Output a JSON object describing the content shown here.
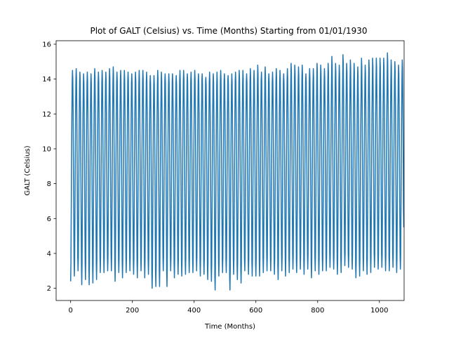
{
  "chart_data": {
    "type": "line",
    "title": "Plot of GALT (Celsius) vs. Time (Months) Starting from 01/01/1930",
    "xlabel": "Time (Months)",
    "ylabel": "GALT (Celsius)",
    "xlim": [
      -47,
      1080
    ],
    "ylim": [
      1.3,
      16.2
    ],
    "xticks": [
      0,
      200,
      400,
      600,
      800,
      1000
    ],
    "yticks": [
      2,
      4,
      6,
      8,
      10,
      12,
      14,
      16
    ],
    "grid": false,
    "legend": false,
    "series": [
      {
        "color": "#1f77b4",
        "x_start": 0,
        "x_step": 1,
        "values": [
          2.4,
          3.5,
          6.5,
          9.5,
          12.0,
          13.8,
          14.5,
          14.0,
          12.2,
          9.3,
          6.3,
          3.6,
          2.7,
          3.6,
          6.6,
          9.6,
          12.1,
          13.9,
          14.6,
          14.1,
          12.3,
          9.4,
          6.4,
          3.8,
          3.0,
          3.7,
          6.5,
          9.5,
          12.0,
          13.8,
          14.4,
          13.9,
          12.1,
          9.2,
          6.2,
          3.4,
          2.2,
          3.4,
          6.4,
          9.4,
          11.9,
          13.7,
          14.3,
          13.8,
          12.0,
          9.1,
          6.1,
          3.5,
          2.5,
          3.5,
          6.5,
          9.5,
          12.0,
          13.8,
          14.4,
          13.9,
          12.1,
          9.2,
          6.2,
          3.3,
          2.2,
          3.4,
          6.4,
          9.4,
          11.9,
          13.7,
          14.3,
          13.8,
          12.0,
          9.1,
          6.1,
          3.3,
          2.3,
          3.5,
          6.5,
          9.6,
          12.1,
          13.9,
          14.6,
          14.1,
          12.3,
          9.4,
          6.3,
          3.4,
          2.5,
          3.6,
          6.5,
          9.5,
          12.0,
          13.8,
          14.4,
          13.9,
          12.1,
          9.2,
          6.2,
          3.8,
          2.9,
          3.8,
          6.6,
          9.5,
          12.0,
          13.8,
          14.5,
          14.0,
          12.2,
          9.3,
          6.3,
          3.8,
          2.9,
          3.8,
          6.6,
          9.5,
          12.0,
          13.8,
          14.4,
          13.9,
          12.1,
          9.2,
          6.2,
          3.8,
          3.0,
          3.8,
          6.6,
          9.6,
          12.1,
          13.9,
          14.6,
          14.1,
          12.3,
          9.4,
          6.4,
          3.9,
          3.0,
          3.8,
          6.6,
          9.6,
          12.1,
          13.9,
          14.7,
          14.2,
          12.4,
          9.5,
          6.4,
          3.5,
          2.4,
          3.5,
          6.5,
          9.5,
          12.0,
          13.8,
          14.4,
          13.9,
          12.1,
          9.2,
          6.2,
          3.7,
          2.9,
          3.8,
          6.6,
          9.6,
          12.1,
          13.9,
          14.5,
          14.0,
          12.2,
          9.3,
          6.3,
          3.5,
          2.6,
          3.6,
          6.5,
          9.5,
          12.0,
          13.8,
          14.5,
          14.0,
          12.2,
          9.3,
          6.3,
          3.8,
          2.9,
          3.8,
          6.6,
          9.6,
          12.1,
          13.9,
          14.4,
          13.9,
          12.1,
          9.2,
          6.2,
          3.8,
          3.0,
          3.8,
          6.6,
          9.5,
          12.0,
          13.8,
          14.3,
          13.8,
          12.0,
          9.1,
          6.1,
          3.6,
          2.8,
          3.7,
          6.6,
          9.6,
          12.1,
          13.9,
          14.4,
          13.9,
          12.1,
          9.2,
          6.2,
          3.5,
          2.6,
          3.6,
          6.5,
          9.5,
          12.0,
          13.8,
          14.5,
          14.0,
          12.2,
          9.3,
          6.3,
          3.8,
          3.0,
          3.8,
          6.6,
          9.6,
          12.1,
          13.9,
          14.5,
          14.0,
          12.2,
          9.3,
          6.3,
          3.5,
          2.6,
          3.6,
          6.5,
          9.5,
          12.0,
          13.8,
          14.4,
          13.9,
          12.1,
          9.2,
          6.2,
          3.6,
          2.8,
          3.7,
          6.6,
          9.5,
          12.0,
          13.8,
          14.2,
          13.7,
          11.9,
          9.0,
          6.0,
          2.8,
          2.0,
          3.2,
          6.3,
          9.3,
          11.8,
          13.6,
          14.2,
          13.7,
          11.9,
          9.0,
          6.0,
          2.9,
          2.1,
          3.3,
          6.4,
          9.4,
          11.9,
          13.7,
          14.5,
          14.0,
          12.2,
          9.3,
          6.3,
          3.0,
          2.1,
          3.3,
          6.4,
          9.4,
          11.9,
          13.7,
          14.4,
          13.9,
          12.1,
          9.2,
          6.2,
          3.8,
          3.0,
          3.8,
          6.6,
          9.6,
          12.1,
          13.9,
          14.3,
          13.8,
          12.0,
          9.1,
          6.1,
          3.0,
          2.1,
          3.3,
          6.4,
          9.4,
          11.9,
          13.7,
          14.3,
          13.8,
          12.0,
          9.1,
          6.1,
          3.8,
          3.0,
          3.8,
          6.6,
          9.6,
          12.1,
          13.9,
          14.3,
          13.8,
          12.0,
          9.1,
          6.1,
          3.5,
          2.6,
          3.6,
          6.5,
          9.5,
          12.0,
          13.8,
          14.2,
          13.7,
          11.9,
          9.0,
          6.0,
          3.6,
          2.8,
          3.7,
          6.6,
          9.6,
          12.1,
          13.9,
          14.5,
          14.0,
          12.2,
          9.3,
          6.3,
          3.5,
          2.7,
          3.7,
          6.6,
          9.6,
          12.1,
          13.9,
          14.5,
          14.0,
          12.2,
          9.3,
          6.3,
          3.6,
          2.8,
          3.7,
          6.6,
          9.6,
          12.1,
          13.9,
          14.3,
          13.8,
          12.0,
          9.1,
          6.1,
          3.7,
          2.9,
          3.8,
          6.6,
          9.6,
          12.1,
          13.9,
          14.4,
          13.9,
          12.1,
          9.2,
          6.2,
          3.7,
          2.9,
          3.8,
          6.6,
          9.6,
          12.1,
          13.9,
          14.5,
          14.0,
          12.2,
          9.3,
          6.3,
          3.8,
          3.0,
          3.8,
          6.6,
          9.6,
          12.1,
          13.9,
          14.3,
          13.8,
          12.0,
          9.1,
          6.1,
          3.5,
          2.7,
          3.7,
          6.6,
          9.6,
          12.1,
          13.9,
          14.3,
          13.8,
          12.0,
          9.1,
          6.1,
          3.6,
          2.8,
          3.7,
          6.6,
          9.6,
          12.1,
          13.9,
          14.1,
          13.6,
          11.8,
          8.9,
          5.9,
          3.3,
          2.5,
          3.5,
          6.5,
          9.5,
          12.0,
          13.8,
          14.4,
          13.9,
          12.1,
          9.2,
          6.2,
          3.2,
          2.4,
          3.4,
          6.4,
          9.4,
          11.9,
          13.7,
          14.3,
          13.8,
          12.0,
          9.1,
          6.1,
          2.7,
          1.9,
          3.2,
          6.3,
          9.3,
          11.8,
          13.6,
          14.4,
          13.9,
          12.1,
          9.2,
          6.2,
          3.5,
          2.7,
          3.7,
          6.6,
          9.6,
          12.1,
          13.9,
          14.5,
          14.0,
          12.2,
          9.3,
          6.3,
          3.7,
          2.9,
          3.8,
          6.6,
          9.6,
          12.1,
          13.9,
          14.3,
          13.8,
          12.0,
          9.1,
          6.1,
          3.6,
          2.9,
          3.8,
          6.6,
          9.6,
          12.1,
          13.9,
          14.2,
          13.7,
          11.9,
          9.0,
          6.0,
          2.6,
          1.9,
          3.1,
          6.3,
          9.3,
          11.8,
          13.6,
          14.3,
          13.8,
          12.0,
          9.1,
          6.1,
          3.6,
          2.8,
          3.7,
          6.6,
          9.6,
          12.1,
          13.9,
          14.4,
          13.9,
          12.1,
          9.2,
          6.2,
          3.3,
          2.5,
          3.5,
          6.5,
          9.5,
          12.0,
          13.8,
          14.5,
          14.0,
          12.2,
          9.3,
          6.3,
          3.1,
          2.3,
          3.4,
          6.4,
          9.4,
          11.9,
          13.7,
          14.5,
          14.0,
          12.2,
          9.3,
          6.3,
          3.7,
          3.0,
          3.8,
          6.6,
          9.6,
          12.1,
          13.9,
          14.3,
          13.8,
          12.0,
          9.1,
          6.1,
          3.6,
          2.8,
          3.7,
          6.6,
          9.6,
          12.1,
          13.9,
          14.6,
          14.1,
          12.3,
          9.4,
          6.4,
          3.5,
          2.7,
          3.7,
          6.6,
          9.6,
          12.1,
          13.9,
          14.5,
          14.0,
          12.2,
          9.3,
          6.3,
          3.4,
          2.7,
          3.7,
          6.6,
          9.6,
          12.1,
          13.9,
          14.8,
          14.3,
          12.5,
          9.6,
          6.5,
          3.5,
          2.7,
          3.7,
          6.6,
          9.6,
          12.1,
          13.9,
          14.4,
          13.9,
          12.1,
          9.2,
          6.2,
          3.7,
          2.9,
          3.8,
          6.6,
          9.6,
          12.1,
          13.9,
          14.7,
          14.2,
          12.4,
          9.5,
          6.4,
          3.9,
          3.0,
          3.8,
          6.6,
          9.6,
          12.1,
          13.9,
          14.3,
          13.8,
          12.0,
          9.1,
          6.1,
          3.8,
          3.0,
          3.8,
          6.6,
          9.6,
          12.1,
          13.9,
          14.4,
          13.9,
          12.1,
          9.2,
          6.2,
          3.6,
          2.8,
          3.7,
          6.6,
          9.6,
          12.1,
          13.9,
          14.6,
          14.1,
          12.3,
          9.4,
          6.4,
          3.3,
          2.5,
          3.5,
          6.5,
          9.5,
          12.0,
          13.8,
          14.5,
          14.0,
          12.2,
          9.3,
          6.3,
          3.9,
          3.0,
          3.8,
          6.6,
          9.6,
          12.1,
          13.9,
          14.3,
          13.8,
          12.0,
          9.1,
          6.1,
          3.6,
          2.7,
          3.7,
          6.6,
          9.6,
          12.1,
          13.9,
          14.6,
          14.1,
          12.3,
          9.4,
          6.4,
          3.7,
          2.9,
          3.8,
          6.6,
          9.6,
          12.1,
          13.9,
          14.9,
          14.4,
          12.6,
          9.7,
          6.6,
          3.9,
          3.1,
          3.9,
          6.7,
          9.7,
          12.2,
          14.0,
          14.8,
          14.3,
          12.5,
          9.6,
          6.5,
          3.7,
          2.9,
          3.8,
          6.6,
          9.6,
          12.1,
          13.9,
          14.7,
          14.2,
          12.4,
          9.5,
          6.4,
          3.9,
          3.1,
          3.9,
          6.7,
          9.7,
          12.2,
          14.0,
          14.8,
          14.3,
          12.5,
          9.6,
          6.5,
          3.6,
          2.8,
          3.7,
          6.6,
          9.6,
          12.1,
          13.9,
          14.3,
          13.8,
          12.0,
          9.1,
          6.1,
          3.9,
          3.1,
          3.9,
          6.7,
          9.7,
          12.2,
          14.0,
          14.6,
          14.1,
          12.3,
          9.4,
          6.4,
          3.4,
          2.6,
          3.6,
          6.5,
          9.5,
          12.0,
          13.8,
          14.6,
          14.1,
          12.3,
          9.4,
          6.4,
          3.8,
          3.0,
          3.8,
          6.6,
          9.6,
          12.1,
          13.9,
          14.9,
          14.4,
          12.6,
          9.7,
          6.6,
          3.6,
          2.8,
          3.7,
          6.6,
          9.6,
          12.1,
          13.9,
          14.8,
          14.3,
          12.5,
          9.6,
          6.5,
          3.8,
          3.0,
          3.8,
          6.6,
          9.6,
          12.1,
          13.9,
          14.6,
          14.1,
          12.3,
          9.4,
          6.4,
          3.9,
          3.0,
          3.8,
          6.6,
          9.6,
          12.1,
          13.9,
          14.9,
          14.4,
          12.6,
          9.7,
          6.6,
          4.0,
          3.2,
          3.9,
          6.7,
          9.7,
          12.2,
          14.0,
          15.3,
          14.8,
          13.0,
          10.1,
          7.0,
          3.8,
          3.1,
          3.9,
          6.7,
          9.7,
          12.2,
          14.0,
          14.9,
          14.4,
          12.6,
          9.7,
          6.6,
          3.6,
          2.8,
          3.7,
          6.6,
          9.6,
          12.1,
          13.9,
          14.8,
          14.3,
          12.5,
          9.6,
          6.5,
          3.7,
          2.9,
          3.8,
          6.6,
          9.6,
          12.1,
          13.9,
          15.4,
          14.9,
          13.1,
          10.2,
          7.1,
          4.1,
          3.3,
          4.0,
          6.8,
          9.8,
          12.3,
          14.1,
          14.9,
          14.4,
          12.6,
          9.7,
          6.6,
          4.0,
          3.2,
          3.9,
          6.7,
          9.7,
          12.2,
          14.0,
          15.1,
          14.6,
          12.8,
          9.9,
          6.8,
          3.9,
          3.1,
          3.9,
          6.7,
          9.7,
          12.2,
          14.0,
          14.9,
          14.4,
          12.6,
          9.7,
          6.6,
          3.3,
          2.6,
          3.6,
          6.5,
          9.5,
          12.0,
          13.8,
          14.7,
          14.2,
          12.4,
          9.5,
          6.4,
          3.5,
          2.7,
          3.7,
          6.6,
          9.6,
          12.1,
          13.9,
          15.2,
          14.7,
          12.9,
          10.0,
          6.9,
          3.8,
          3.0,
          3.8,
          6.6,
          9.6,
          12.1,
          13.9,
          14.8,
          14.3,
          12.5,
          9.6,
          6.5,
          3.6,
          2.8,
          3.7,
          6.6,
          9.6,
          12.1,
          13.9,
          15.1,
          14.6,
          12.8,
          9.9,
          6.8,
          3.9,
          2.9,
          3.8,
          6.6,
          9.6,
          12.1,
          13.9,
          15.2,
          14.7,
          12.9,
          10.0,
          6.9,
          4.0,
          3.2,
          3.9,
          6.7,
          9.7,
          12.2,
          14.0,
          15.2,
          14.7,
          12.9,
          10.0,
          6.9,
          3.9,
          3.1,
          3.9,
          6.7,
          9.7,
          12.2,
          14.0,
          15.2,
          14.7,
          12.9,
          10.0,
          6.9,
          4.0,
          3.2,
          3.9,
          6.7,
          9.7,
          12.2,
          14.0,
          15.2,
          14.7,
          12.9,
          10.0,
          6.9,
          3.9,
          3.0,
          3.8,
          6.6,
          9.6,
          12.1,
          13.9,
          15.5,
          15.0,
          13.2,
          10.3,
          7.2,
          3.8,
          3.0,
          3.8,
          6.6,
          9.6,
          12.1,
          13.9,
          15.1,
          14.6,
          12.8,
          9.9,
          6.8,
          4.0,
          3.2,
          3.9,
          6.7,
          9.7,
          12.2,
          14.0,
          15.0,
          14.5,
          12.7,
          9.8,
          6.7,
          3.7,
          2.9,
          3.8,
          6.6,
          9.6,
          12.1,
          13.9,
          14.8,
          14.3,
          12.5,
          9.6,
          6.5,
          3.9,
          3.1,
          3.9,
          6.7,
          9.7,
          12.2,
          14.0,
          15.1,
          14.6,
          12.8,
          9.9,
          6.8,
          5.5
        ]
      }
    ]
  }
}
